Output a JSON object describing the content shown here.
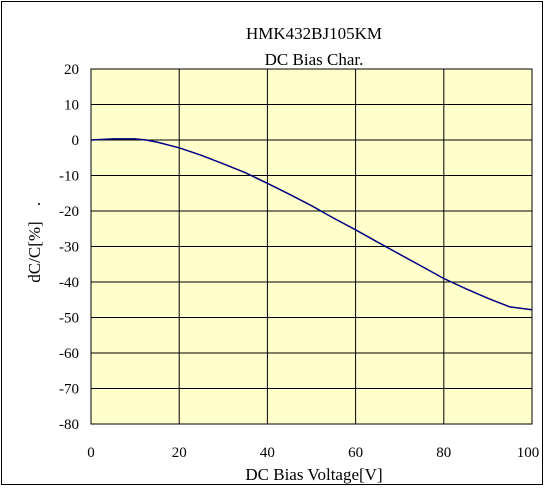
{
  "chart_data": {
    "type": "line",
    "title": "HMK432BJ105KM",
    "subtitle": "DC Bias Char.",
    "xlabel": "DC Bias Voltage[V]",
    "ylabel": "dC/C[%]",
    "ylabel_suffix": ".",
    "xlim": [
      0,
      100
    ],
    "ylim": [
      -80,
      20
    ],
    "x_ticks": [
      "0",
      "20",
      "40",
      "60",
      "80",
      "100"
    ],
    "y_ticks": [
      "20",
      "10",
      "0",
      "-10",
      "-20",
      "-30",
      "-40",
      "-50",
      "-60",
      "-70",
      "-80"
    ],
    "grid": true,
    "colors": {
      "plot_bg": "#ffffcc",
      "line": "#000080",
      "grid": "#000000"
    },
    "series": [
      {
        "x": [
          0,
          5,
          10,
          12.5,
          15,
          20,
          25,
          30,
          35,
          40,
          45,
          50,
          55,
          60,
          65,
          70,
          75,
          80,
          85,
          90,
          95,
          100
        ],
        "values": [
          0,
          0.3,
          0.3,
          0,
          -0.6,
          -2.2,
          -4.3,
          -6.7,
          -9.2,
          -12.2,
          -15.3,
          -18.5,
          -22.0,
          -25.3,
          -28.8,
          -32.2,
          -35.6,
          -39.0,
          -41.9,
          -44.6,
          -47.0,
          -47.8
        ]
      }
    ]
  }
}
